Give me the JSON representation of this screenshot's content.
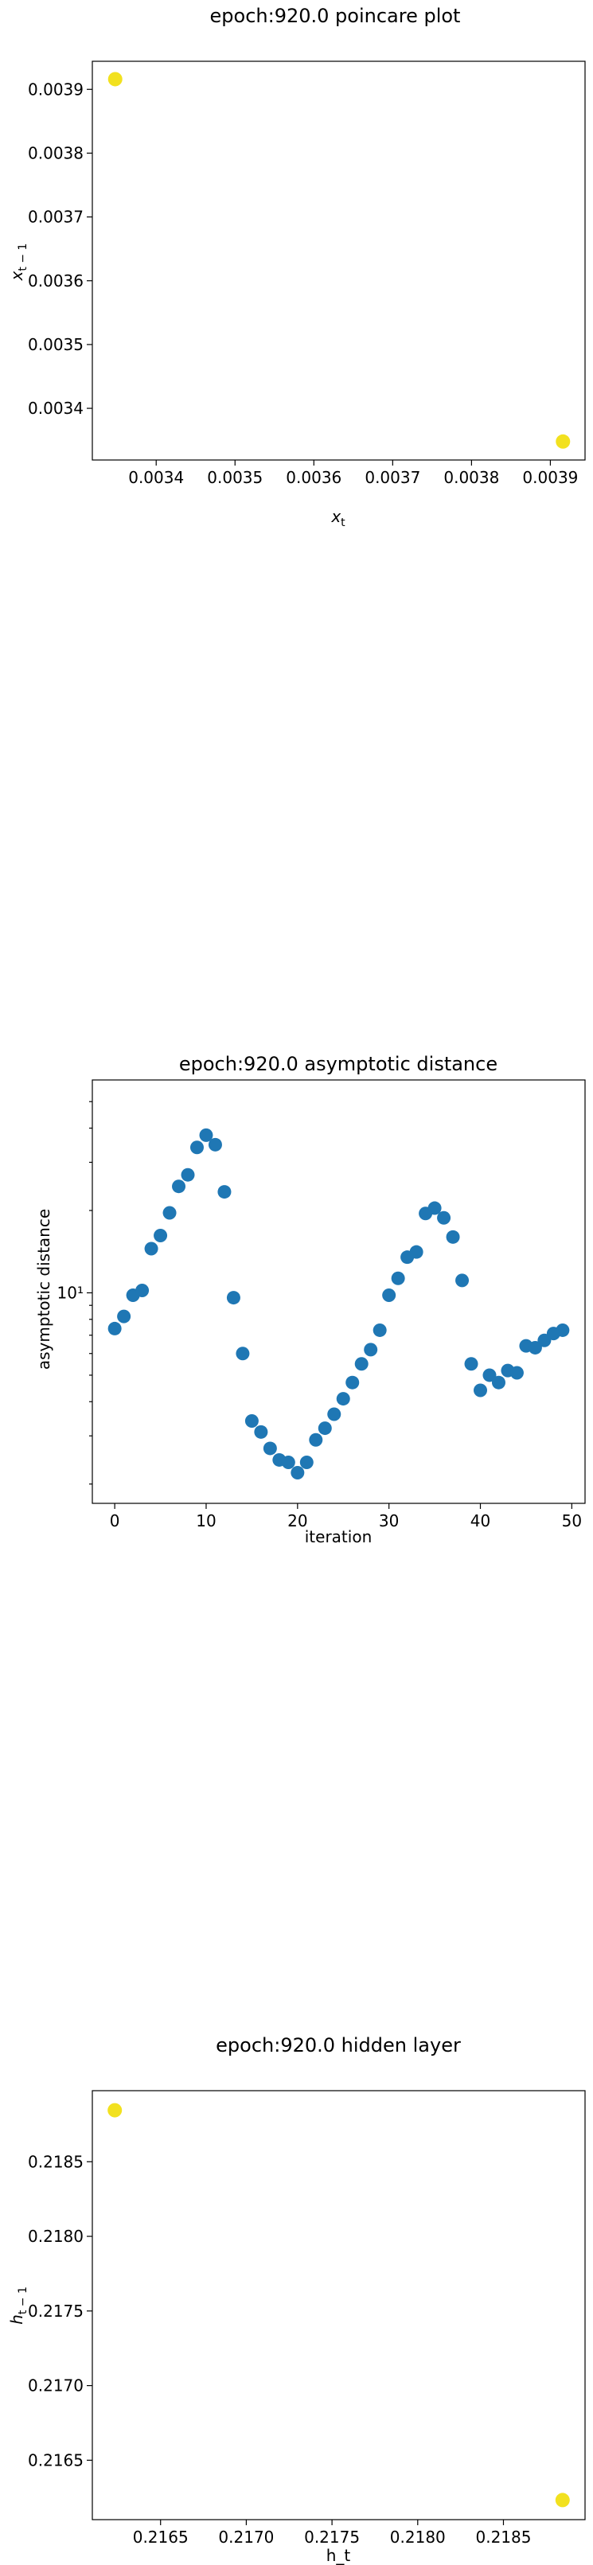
{
  "colors": {
    "yellow_points": "#f2e11f",
    "blue_points": "#1f77b4"
  },
  "chart_data": [
    {
      "type": "scatter",
      "title": "epoch:920.0 poincare plot",
      "xlabel": "x_t",
      "ylabel": "x_{t-1}",
      "xlim": [
        0.003319,
        0.003944
      ],
      "ylim": [
        0.003319,
        0.003944
      ],
      "xticks": [
        0.0034,
        0.0035,
        0.0036,
        0.0037,
        0.0038,
        0.0039
      ],
      "xtick_labels": [
        "0.0034",
        "0.0035",
        "0.0036",
        "0.0037",
        "0.0038",
        "0.0039"
      ],
      "yticks": [
        0.0034,
        0.0035,
        0.0036,
        0.0037,
        0.0038,
        0.0039
      ],
      "ytick_labels": [
        "0.0034",
        "0.0035",
        "0.0036",
        "0.0037",
        "0.0038",
        "0.0039"
      ],
      "points": [
        {
          "x": 0.003348,
          "y": 0.003916
        },
        {
          "x": 0.003916,
          "y": 0.003348
        }
      ],
      "grid": false
    },
    {
      "type": "scatter",
      "title": "epoch:920.0 asymptotic distance",
      "xlabel": "iteration",
      "ylabel": "asymptotic distance",
      "yscale": "log",
      "xlim": [
        -2.45,
        51.45
      ],
      "ylim": [
        1.7,
        60
      ],
      "xticks": [
        0,
        10,
        20,
        30,
        40,
        50
      ],
      "xtick_labels": [
        "0",
        "10",
        "20",
        "30",
        "40",
        "50"
      ],
      "yticks": [
        10
      ],
      "ytick_labels": [
        "10¹"
      ],
      "x": [
        0,
        1,
        2,
        3,
        4,
        5,
        6,
        7,
        8,
        9,
        10,
        11,
        12,
        13,
        14,
        15,
        16,
        17,
        18,
        19,
        20,
        21,
        22,
        23,
        24,
        25,
        26,
        27,
        28,
        29,
        30,
        31,
        32,
        33,
        34,
        35,
        36,
        37,
        38,
        39,
        40,
        41,
        42,
        43,
        44,
        45,
        46,
        47,
        48,
        49
      ],
      "y": [
        7.4,
        8.2,
        9.8,
        10.2,
        14.5,
        16.2,
        19.6,
        24.5,
        27.0,
        34.0,
        37.7,
        34.8,
        23.4,
        9.6,
        6.0,
        3.4,
        3.1,
        2.7,
        2.45,
        2.4,
        2.2,
        2.4,
        2.9,
        3.2,
        3.6,
        4.1,
        4.7,
        5.5,
        6.2,
        7.3,
        9.8,
        11.3,
        13.5,
        14.1,
        19.5,
        20.4,
        18.8,
        16.0,
        11.1,
        5.5,
        4.4,
        5.0,
        4.7,
        5.2,
        5.1,
        6.4,
        6.3,
        6.7,
        7.1,
        7.3
      ],
      "grid": false
    },
    {
      "type": "scatter",
      "title": "epoch:920.0 hidden layer",
      "xlabel": "h_t",
      "ylabel": "h_{t-1}",
      "xlim": [
        0.216102,
        0.218976
      ],
      "ylim": [
        0.216102,
        0.218976
      ],
      "xticks": [
        0.2165,
        0.217,
        0.2175,
        0.218,
        0.2185
      ],
      "xtick_labels": [
        "0.2165",
        "0.2170",
        "0.2175",
        "0.2180",
        "0.2185"
      ],
      "yticks": [
        0.2165,
        0.217,
        0.2175,
        0.218,
        0.2185
      ],
      "ytick_labels": [
        "0.2165",
        "0.2170",
        "0.2175",
        "0.2180",
        "0.2185"
      ],
      "points": [
        {
          "x": 0.216233,
          "y": 0.218845
        },
        {
          "x": 0.218845,
          "y": 0.216233
        }
      ],
      "grid": false
    }
  ]
}
